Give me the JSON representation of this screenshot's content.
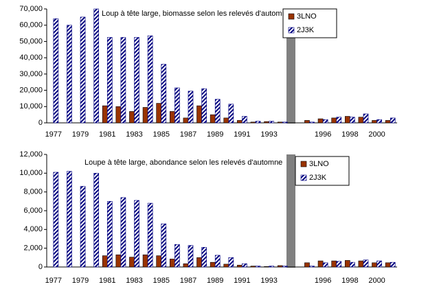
{
  "chart_data": [
    {
      "type": "bar",
      "title": "Loup à tête large, biomasse selon les relevés d'automne",
      "categories": [
        "1977",
        null,
        "1979",
        null,
        "1981",
        null,
        "1983",
        null,
        "1985",
        null,
        "1987",
        null,
        "1989",
        null,
        "1991",
        null,
        "1993",
        null,
        null,
        null,
        "1996",
        null,
        "1998",
        null,
        "2000",
        null
      ],
      "series": [
        {
          "name": "3LNO",
          "color": "#993300",
          "hatch": false,
          "values": [
            null,
            null,
            null,
            null,
            10500,
            10000,
            7000,
            9500,
            12000,
            7000,
            3000,
            10500,
            5000,
            3000,
            1500,
            500,
            800,
            500,
            null,
            1500,
            2500,
            3000,
            4000,
            3500,
            1500,
            1500
          ]
        },
        {
          "name": "2J3K",
          "color": "#000080",
          "hatch": true,
          "values": [
            64000,
            60000,
            65000,
            70000,
            52500,
            52500,
            52500,
            53500,
            36000,
            21500,
            19500,
            21000,
            14500,
            11500,
            4000,
            1000,
            1000,
            500,
            null,
            500,
            2000,
            3500,
            3500,
            5500,
            2000,
            3000
          ]
        }
      ],
      "ylim": [
        0,
        70000
      ],
      "yticks": [
        0,
        {
          "value": 10000,
          "label": "10,000"
        },
        {
          "value": 20000,
          "label": "20,000"
        },
        {
          "value": 30000,
          "label": "30,000"
        },
        {
          "value": 40000,
          "label": "40,000"
        },
        {
          "value": 50000,
          "label": "50,000"
        },
        {
          "value": 60000,
          "label": "60,000"
        },
        {
          "value": 70000,
          "label": "70,000"
        }
      ],
      "legend": "top-right"
    },
    {
      "type": "bar",
      "title": "Loupe à tête large, abondance selon les relevés d'automne",
      "categories": [
        "1977",
        null,
        "1979",
        null,
        "1981",
        null,
        "1983",
        null,
        "1985",
        null,
        "1987",
        null,
        "1989",
        null,
        "1991",
        null,
        "1993",
        null,
        null,
        null,
        "1996",
        null,
        "1998",
        null,
        "2000",
        null
      ],
      "series": [
        {
          "name": "3LNO",
          "color": "#993300",
          "hatch": false,
          "values": [
            null,
            null,
            null,
            null,
            1200,
            1300,
            1050,
            1300,
            1200,
            850,
            350,
            1000,
            500,
            300,
            200,
            100,
            50,
            150,
            null,
            450,
            650,
            650,
            700,
            650,
            450,
            450
          ]
        },
        {
          "name": "2J3K",
          "color": "#000080",
          "hatch": true,
          "values": [
            10100,
            10200,
            8600,
            10000,
            7000,
            7400,
            7100,
            6800,
            4600,
            2400,
            2300,
            2100,
            1250,
            1000,
            350,
            100,
            100,
            100,
            null,
            100,
            450,
            600,
            500,
            750,
            650,
            500
          ]
        }
      ],
      "ylim": [
        0,
        12000
      ],
      "yticks": [
        0,
        {
          "value": 2000,
          "label": "2,000"
        },
        {
          "value": 4000,
          "label": "4,000"
        },
        {
          "value": 6000,
          "label": "6,000"
        },
        {
          "value": 8000,
          "label": "8,000"
        },
        {
          "value": 10000,
          "label": "10,000"
        },
        {
          "value": 12000,
          "label": "12,000"
        }
      ],
      "legend": "top-right"
    }
  ]
}
